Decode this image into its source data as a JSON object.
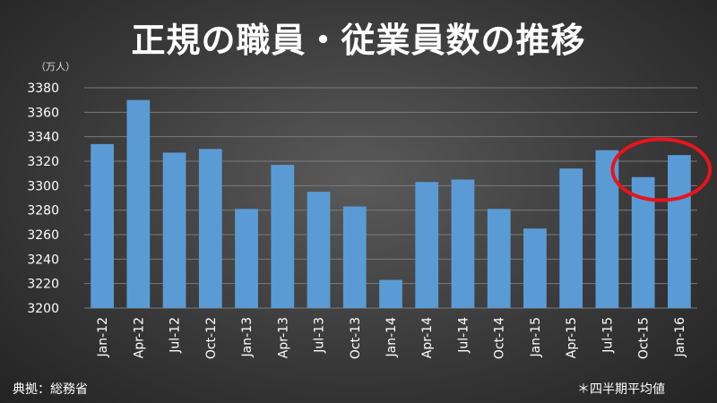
{
  "title": "正規の職員・従業員数の推移",
  "unit_label": "（万人）",
  "source_label": "典拠：総務省",
  "note_label": "＊四半期平均値",
  "colors": {
    "bar": "#5b9bd5",
    "grid": "#7a7a7a",
    "highlight": "#e8141c"
  },
  "chart_data": {
    "type": "bar",
    "categories": [
      "Jan-12",
      "Apr-12",
      "Jul-12",
      "Oct-12",
      "Jan-13",
      "Apr-13",
      "Jul-13",
      "Oct-13",
      "Jan-14",
      "Apr-14",
      "Jul-14",
      "Oct-14",
      "Jan-15",
      "Apr-15",
      "Jul-15",
      "Oct-15",
      "Jan-16"
    ],
    "values": [
      3334,
      3370,
      3327,
      3330,
      3281,
      3317,
      3295,
      3283,
      3223,
      3303,
      3305,
      3281,
      3265,
      3314,
      3329,
      3307,
      3325
    ],
    "ylim": [
      3200,
      3380
    ],
    "yticks": [
      3200,
      3220,
      3240,
      3260,
      3280,
      3300,
      3320,
      3340,
      3360,
      3380
    ],
    "grid": true,
    "highlighted_categories": [
      "Oct-15",
      "Jan-16"
    ]
  }
}
